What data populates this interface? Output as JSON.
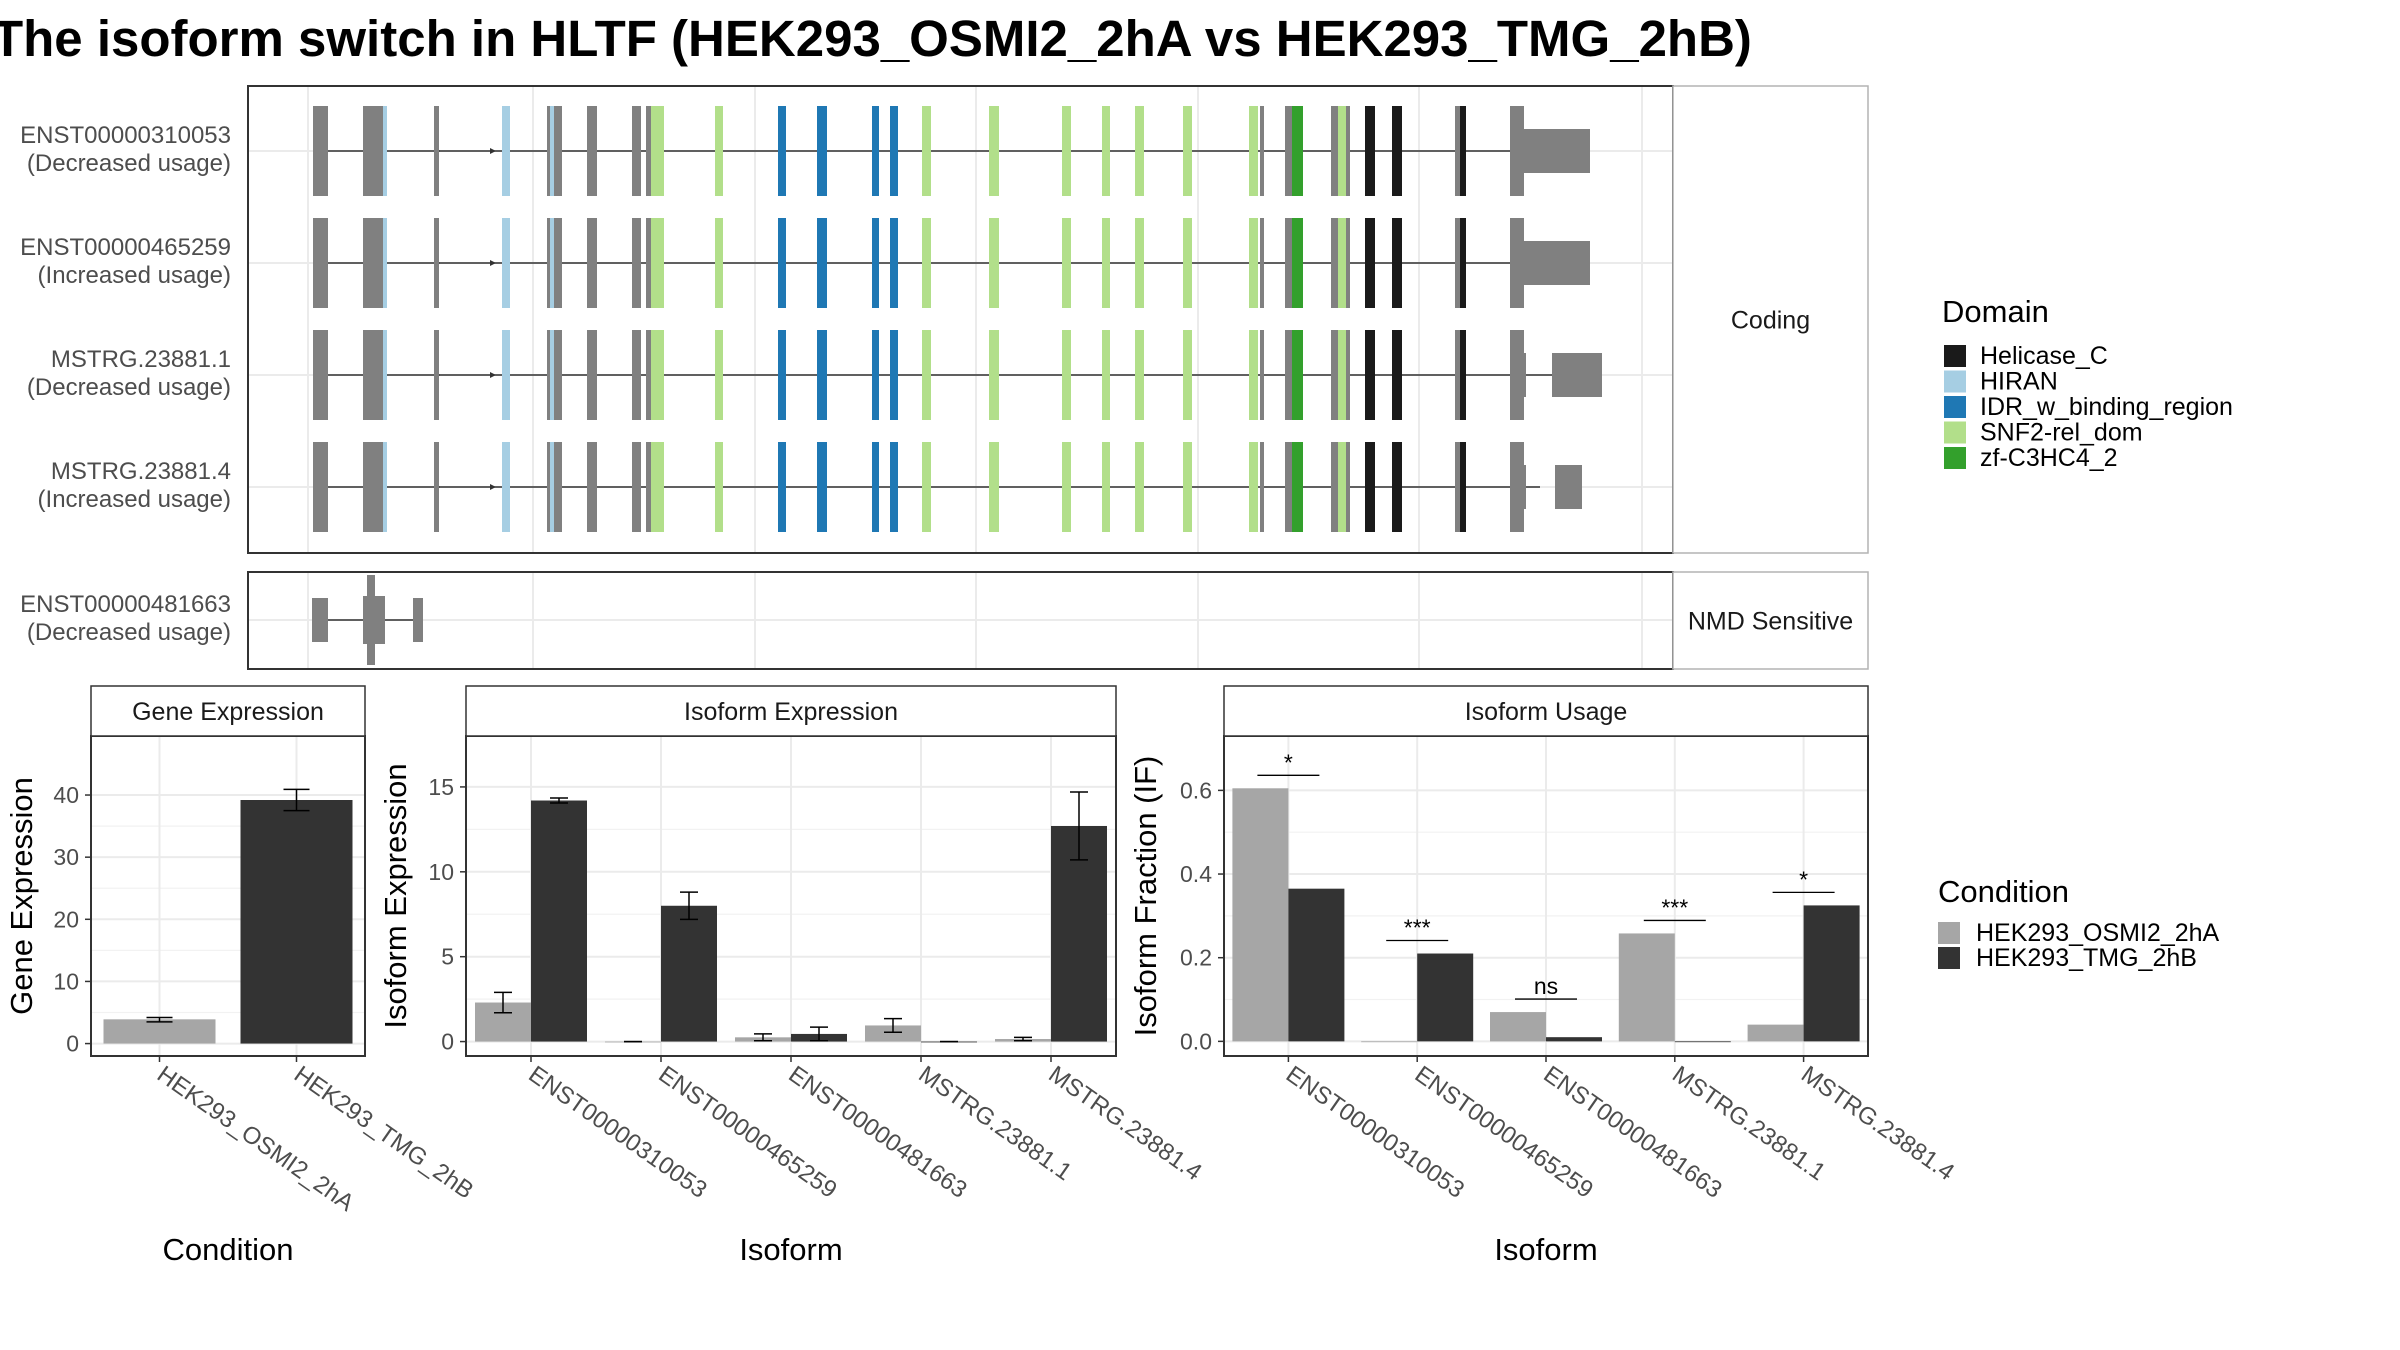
{
  "title": "The isoform switch in HLTF (HEK293_OSMI2_2hA vs HEK293_TMG_2hB)",
  "colors": {
    "condition_a": "#a6a6a6",
    "condition_b": "#333333",
    "exon": "#808080",
    "domains": {
      "Helicase_C": "#1a1a1a",
      "HIRAN": "#a6cee3",
      "IDR_w_binding_region": "#1f78b4",
      "SNF2-rel_dom": "#b2df8a",
      "zf-C3HC4_2": "#33a02c"
    }
  },
  "structure": {
    "panels": [
      {
        "label": "Coding",
        "isoforms": [
          {
            "name": "ENST00000310053",
            "usage": "(Decreased usage)",
            "type": "long_utr"
          },
          {
            "name": "ENST00000465259",
            "usage": "(Increased usage)",
            "type": "long_utr"
          },
          {
            "name": "MSTRG.23881.1",
            "usage": "(Decreased usage)",
            "type": "split_tail_1"
          },
          {
            "name": "MSTRG.23881.4",
            "usage": "(Increased usage)",
            "type": "split_tail_4"
          }
        ]
      },
      {
        "label": "NMD Sensitive",
        "isoforms": [
          {
            "name": "ENST00000481663",
            "usage": "(Decreased usage)",
            "type": "nmd"
          }
        ]
      }
    ],
    "legend_title": "Domain",
    "legend_items": [
      "Helicase_C",
      "HIRAN",
      "IDR_w_binding_region",
      "SNF2-rel_dom",
      "zf-C3HC4_2"
    ]
  },
  "condition_legend": {
    "title": "Condition",
    "items": [
      "HEK293_OSMI2_2hA",
      "HEK293_TMG_2hB"
    ]
  },
  "chart_data": [
    {
      "type": "bar",
      "title": "Gene Expression",
      "xlabel": "Condition",
      "ylabel": "Gene Expression",
      "categories": [
        "HEK293_OSMI2_2hA",
        "HEK293_TMG_2hB"
      ],
      "values": [
        3.9,
        39.2
      ],
      "errors": [
        [
          3.5,
          4.2
        ],
        [
          37.5,
          40.9
        ]
      ],
      "ylim": [
        -2.0,
        49.5
      ],
      "yticks": [
        0,
        10,
        20,
        30,
        40
      ],
      "ytick_labels": [
        "0",
        "10",
        "20",
        "30",
        "40"
      ]
    },
    {
      "type": "bar",
      "title": "Isoform Expression",
      "xlabel": "Isoform",
      "ylabel": "Isoform Expression",
      "categories": [
        "ENST00000310053",
        "ENST00000465259",
        "ENST00000481663",
        "MSTRG.23881.1",
        "MSTRG.23881.4"
      ],
      "series": [
        {
          "name": "HEK293_OSMI2_2hA",
          "values": [
            2.3,
            0.0,
            0.25,
            0.95,
            0.15
          ],
          "errors": [
            [
              1.7,
              2.9
            ],
            [
              0.0,
              0.0
            ],
            [
              0.05,
              0.45
            ],
            [
              0.55,
              1.35
            ],
            [
              0.05,
              0.25
            ]
          ]
        },
        {
          "name": "HEK293_TMG_2hB",
          "values": [
            14.2,
            8.0,
            0.45,
            0.0,
            12.7
          ],
          "errors": [
            [
              14.05,
              14.35
            ],
            [
              7.2,
              8.8
            ],
            [
              0.05,
              0.85
            ],
            [
              0.0,
              0.0
            ],
            [
              10.7,
              14.7
            ]
          ]
        }
      ],
      "ylim": [
        -0.85,
        18.0
      ],
      "yticks": [
        0,
        5,
        10,
        15
      ],
      "ytick_labels": [
        "0",
        "5",
        "10",
        "15"
      ]
    },
    {
      "type": "bar",
      "title": "Isoform Usage",
      "xlabel": "Isoform",
      "ylabel": "Isoform Fraction (IF)",
      "categories": [
        "ENST00000310053",
        "ENST00000465259",
        "ENST00000481663",
        "MSTRG.23881.1",
        "MSTRG.23881.4"
      ],
      "series": [
        {
          "name": "HEK293_OSMI2_2hA",
          "values": [
            0.605,
            0.0,
            0.07,
            0.258,
            0.04
          ]
        },
        {
          "name": "HEK293_TMG_2hB",
          "values": [
            0.365,
            0.21,
            0.01,
            0.0,
            0.325
          ]
        }
      ],
      "significance": [
        "*",
        "***",
        "ns",
        "***",
        "*"
      ],
      "ylim": [
        -0.035,
        0.73
      ],
      "yticks": [
        0,
        0.2,
        0.4,
        0.6
      ],
      "ytick_labels": [
        "0.0",
        "0.2",
        "0.4",
        "0.6"
      ]
    }
  ]
}
